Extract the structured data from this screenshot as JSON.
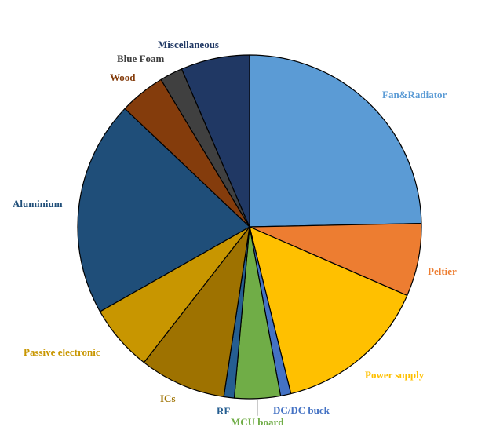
{
  "chart_data": {
    "type": "pie",
    "title": "",
    "slices": [
      {
        "label": "Fan&Radiator",
        "value": 25.2,
        "color": "#5b9bd5",
        "label_color": "#5b9bd5"
      },
      {
        "label": "Peltier",
        "value": 7.0,
        "color": "#ed7d31",
        "label_color": "#ed7d31"
      },
      {
        "label": "Power supply",
        "value": 14.9,
        "color": "#ffc000",
        "label_color": "#ffc000"
      },
      {
        "label": "DC/DC buck",
        "value": 1.0,
        "color": "#4472c4",
        "label_color": "#4472c4"
      },
      {
        "label": "MCU board",
        "value": 4.4,
        "color": "#70ad47",
        "label_color": "#70ad47"
      },
      {
        "label": "RF",
        "value": 1.0,
        "color": "#255e91",
        "label_color": "#255e91"
      },
      {
        "label": "ICs",
        "value": 8.3,
        "color": "#9e7200",
        "label_color": "#9e7200"
      },
      {
        "label": "Passive electronic",
        "value": 6.4,
        "color": "#c89600",
        "label_color": "#c89600"
      },
      {
        "label": "Aluminium",
        "value": 20.7,
        "color": "#1f4e79",
        "label_color": "#1f4e79"
      },
      {
        "label": "Wood",
        "value": 4.4,
        "color": "#843c0c",
        "label_color": "#843c0c"
      },
      {
        "label": "Blue Foam",
        "value": 2.2,
        "color": "#404040",
        "label_color": "#404040"
      },
      {
        "label": "Miscellaneous",
        "value": 6.6,
        "color": "#203864",
        "label_color": "#203864"
      }
    ],
    "legend": "none",
    "start_angle": "12 o'clock",
    "direction": "clockwise"
  }
}
